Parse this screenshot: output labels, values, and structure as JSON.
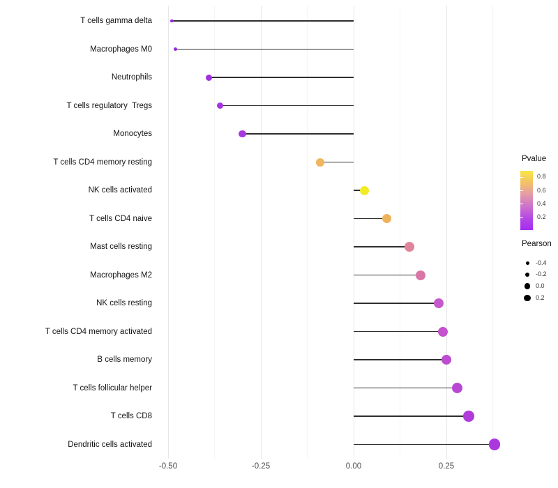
{
  "chart_data": {
    "type": "scatter",
    "subtype": "lollipop",
    "title": "",
    "xlabel": "",
    "ylabel": "",
    "xlim": [
      -0.535,
      0.425
    ],
    "grid": "vertical-only",
    "xticks": [
      {
        "value": -0.5,
        "label": "-0.50"
      },
      {
        "value": -0.25,
        "label": "-0.25"
      },
      {
        "value": 0.0,
        "label": "0.00"
      },
      {
        "value": 0.25,
        "label": "0.25"
      }
    ],
    "minor_xticks": [
      -0.375,
      -0.125,
      0.125,
      0.375
    ],
    "points": [
      {
        "label": "T cells gamma delta",
        "pearson": -0.49,
        "pvalue": 0.04,
        "color": "#9126DB",
        "size": 4.5
      },
      {
        "label": "Macrophages M0",
        "pearson": -0.48,
        "pvalue": 0.05,
        "color": "#9529DC",
        "size": 5
      },
      {
        "label": "Neutrophils",
        "pearson": -0.39,
        "pvalue": 0.09,
        "color": "#9F31E0",
        "size": 9
      },
      {
        "label": "T cells regulatory  Tregs",
        "pearson": -0.36,
        "pvalue": 0.1,
        "color": "#A235E0",
        "size": 9.5
      },
      {
        "label": "Monocytes",
        "pearson": -0.3,
        "pvalue": 0.13,
        "color": "#A53BDF",
        "size": 10.5
      },
      {
        "label": "T cells CD4 memory resting",
        "pearson": -0.09,
        "pvalue": 0.62,
        "color": "#EFB65F",
        "size": 12
      },
      {
        "label": "NK cells activated",
        "pearson": 0.03,
        "pvalue": 0.88,
        "color": "#F2EB27",
        "size": 13
      },
      {
        "label": "T cells CD4 naive",
        "pearson": 0.09,
        "pvalue": 0.61,
        "color": "#EFB25C",
        "size": 13
      },
      {
        "label": "Mast cells resting",
        "pearson": 0.15,
        "pvalue": 0.45,
        "color": "#E0849B",
        "size": 13.5
      },
      {
        "label": "Macrophages M2",
        "pearson": 0.18,
        "pvalue": 0.38,
        "color": "#D876A8",
        "size": 14
      },
      {
        "label": "NK cells resting",
        "pearson": 0.23,
        "pvalue": 0.25,
        "color": "#C558CA",
        "size": 14
      },
      {
        "label": "T cells CD4 memory activated",
        "pearson": 0.24,
        "pvalue": 0.23,
        "color": "#C352CC",
        "size": 14
      },
      {
        "label": "B cells memory",
        "pearson": 0.25,
        "pvalue": 0.2,
        "color": "#BE4CD1",
        "size": 14.5
      },
      {
        "label": "T cells follicular helper",
        "pearson": 0.28,
        "pvalue": 0.17,
        "color": "#B847D4",
        "size": 15
      },
      {
        "label": "T cells CD8",
        "pearson": 0.31,
        "pvalue": 0.12,
        "color": "#AF3CDA",
        "size": 15.5
      },
      {
        "label": "Dendritic cells activated",
        "pearson": 0.38,
        "pvalue": 0.1,
        "color": "#AB38DF",
        "size": 16.5
      }
    ],
    "legend": {
      "pvalue": {
        "title": "Pvalue",
        "bar_range": [
          0.01,
          0.89
        ],
        "gradient_top_to_bottom": [
          "#F9E545",
          "#F3C266",
          "#E49AA9",
          "#CE72CC",
          "#B648E4",
          "#A52CF0"
        ],
        "ticks": [
          {
            "value": 0.8,
            "label": "0.8"
          },
          {
            "value": 0.6,
            "label": "0.6"
          },
          {
            "value": 0.4,
            "label": "0.4"
          },
          {
            "value": 0.2,
            "label": "0.2"
          }
        ]
      },
      "pearson": {
        "title": "Pearson",
        "items": [
          {
            "label": "-0.4",
            "size": 5
          },
          {
            "label": "-0.2",
            "size": 6.5
          },
          {
            "label": "0.0",
            "size": 8.5
          },
          {
            "label": "0.2",
            "size": 9.5
          }
        ]
      }
    },
    "colors": {
      "stem": "#2e2e2e",
      "grid_major": "#e7e7e7",
      "grid_minor": "#f4f4f4",
      "axis_text": "#4a4a4a",
      "label_text": "#141414"
    }
  }
}
